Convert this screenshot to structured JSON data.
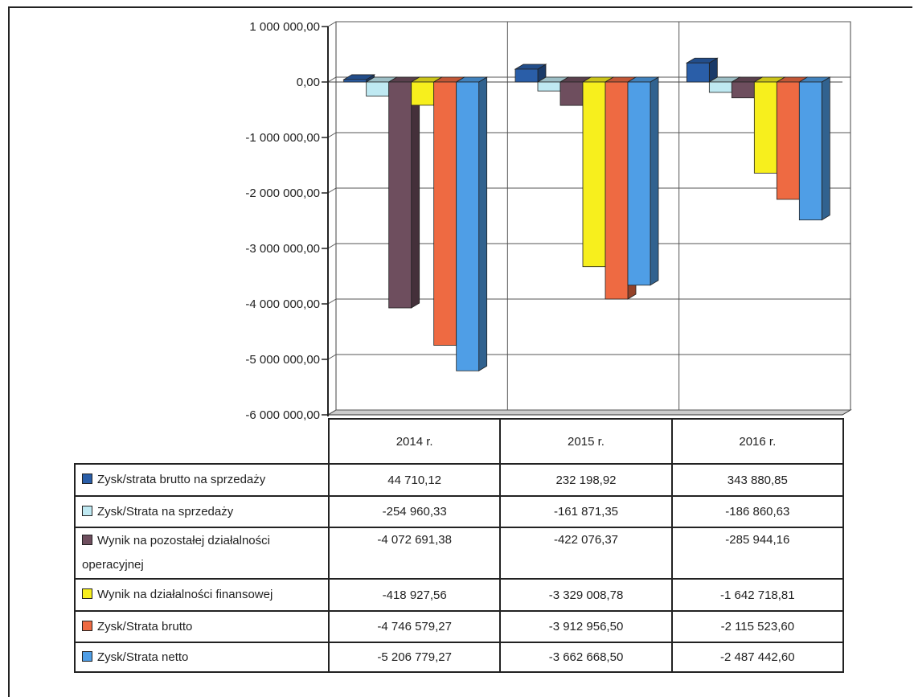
{
  "chart_data": {
    "type": "bar",
    "categories": [
      "2014 r.",
      "2015 r.",
      "2016 r."
    ],
    "ylim": [
      -6000000,
      1000000
    ],
    "yticks": [
      {
        "value": 1000000,
        "label": "1 000 000,00"
      },
      {
        "value": 0,
        "label": "0,00"
      },
      {
        "value": -1000000,
        "label": "-1 000 000,00"
      },
      {
        "value": -2000000,
        "label": "-2 000 000,00"
      },
      {
        "value": -3000000,
        "label": "-3 000 000,00"
      },
      {
        "value": -4000000,
        "label": "-4 000 000,00"
      },
      {
        "value": -5000000,
        "label": "-5 000 000,00"
      },
      {
        "value": -6000000,
        "label": "-6 000 000,00"
      }
    ],
    "grid": true,
    "legend": "table-below",
    "series": [
      {
        "name": "Zysk/strata brutto na sprzedaży",
        "color": "#2a5ea8",
        "values": [
          44710.12,
          232198.92,
          343880.85
        ],
        "labels": [
          "44 710,12",
          "232 198,92",
          "343 880,85"
        ]
      },
      {
        "name": "Zysk/Strata na sprzedaży",
        "color": "#bfe9f2",
        "values": [
          -254960.33,
          -161871.35,
          -186860.63
        ],
        "labels": [
          "-254 960,33",
          "-161 871,35",
          "-186 860,63"
        ]
      },
      {
        "name": "Wynik na pozostałej działalności operacyjnej",
        "color": "#6e4e5e",
        "values": [
          -4072691.38,
          -422076.37,
          -285944.16
        ],
        "labels": [
          "-4 072 691,38",
          "-422 076,37",
          "-285 944,16"
        ]
      },
      {
        "name": "Wynik na działalności finansowej",
        "color": "#f7ef1d",
        "values": [
          -418927.56,
          -3329008.78,
          -1642718.81
        ],
        "labels": [
          "-418 927,56",
          "-3 329 008,78",
          "-1 642 718,81"
        ]
      },
      {
        "name": "Zysk/Strata brutto",
        "color": "#ee6a42",
        "values": [
          -4746579.27,
          -3912956.5,
          -2115523.6
        ],
        "labels": [
          "-4 746 579,27",
          "-3 912 956,50",
          "-2 115 523,60"
        ]
      },
      {
        "name": "Zysk/Strata netto",
        "color": "#4f9ee6",
        "values": [
          -5206779.27,
          -3662668.5,
          -2487442.6
        ],
        "labels": [
          "-5 206 779,27",
          "-3 662 668,50",
          "-2 487 442,60"
        ]
      }
    ]
  }
}
